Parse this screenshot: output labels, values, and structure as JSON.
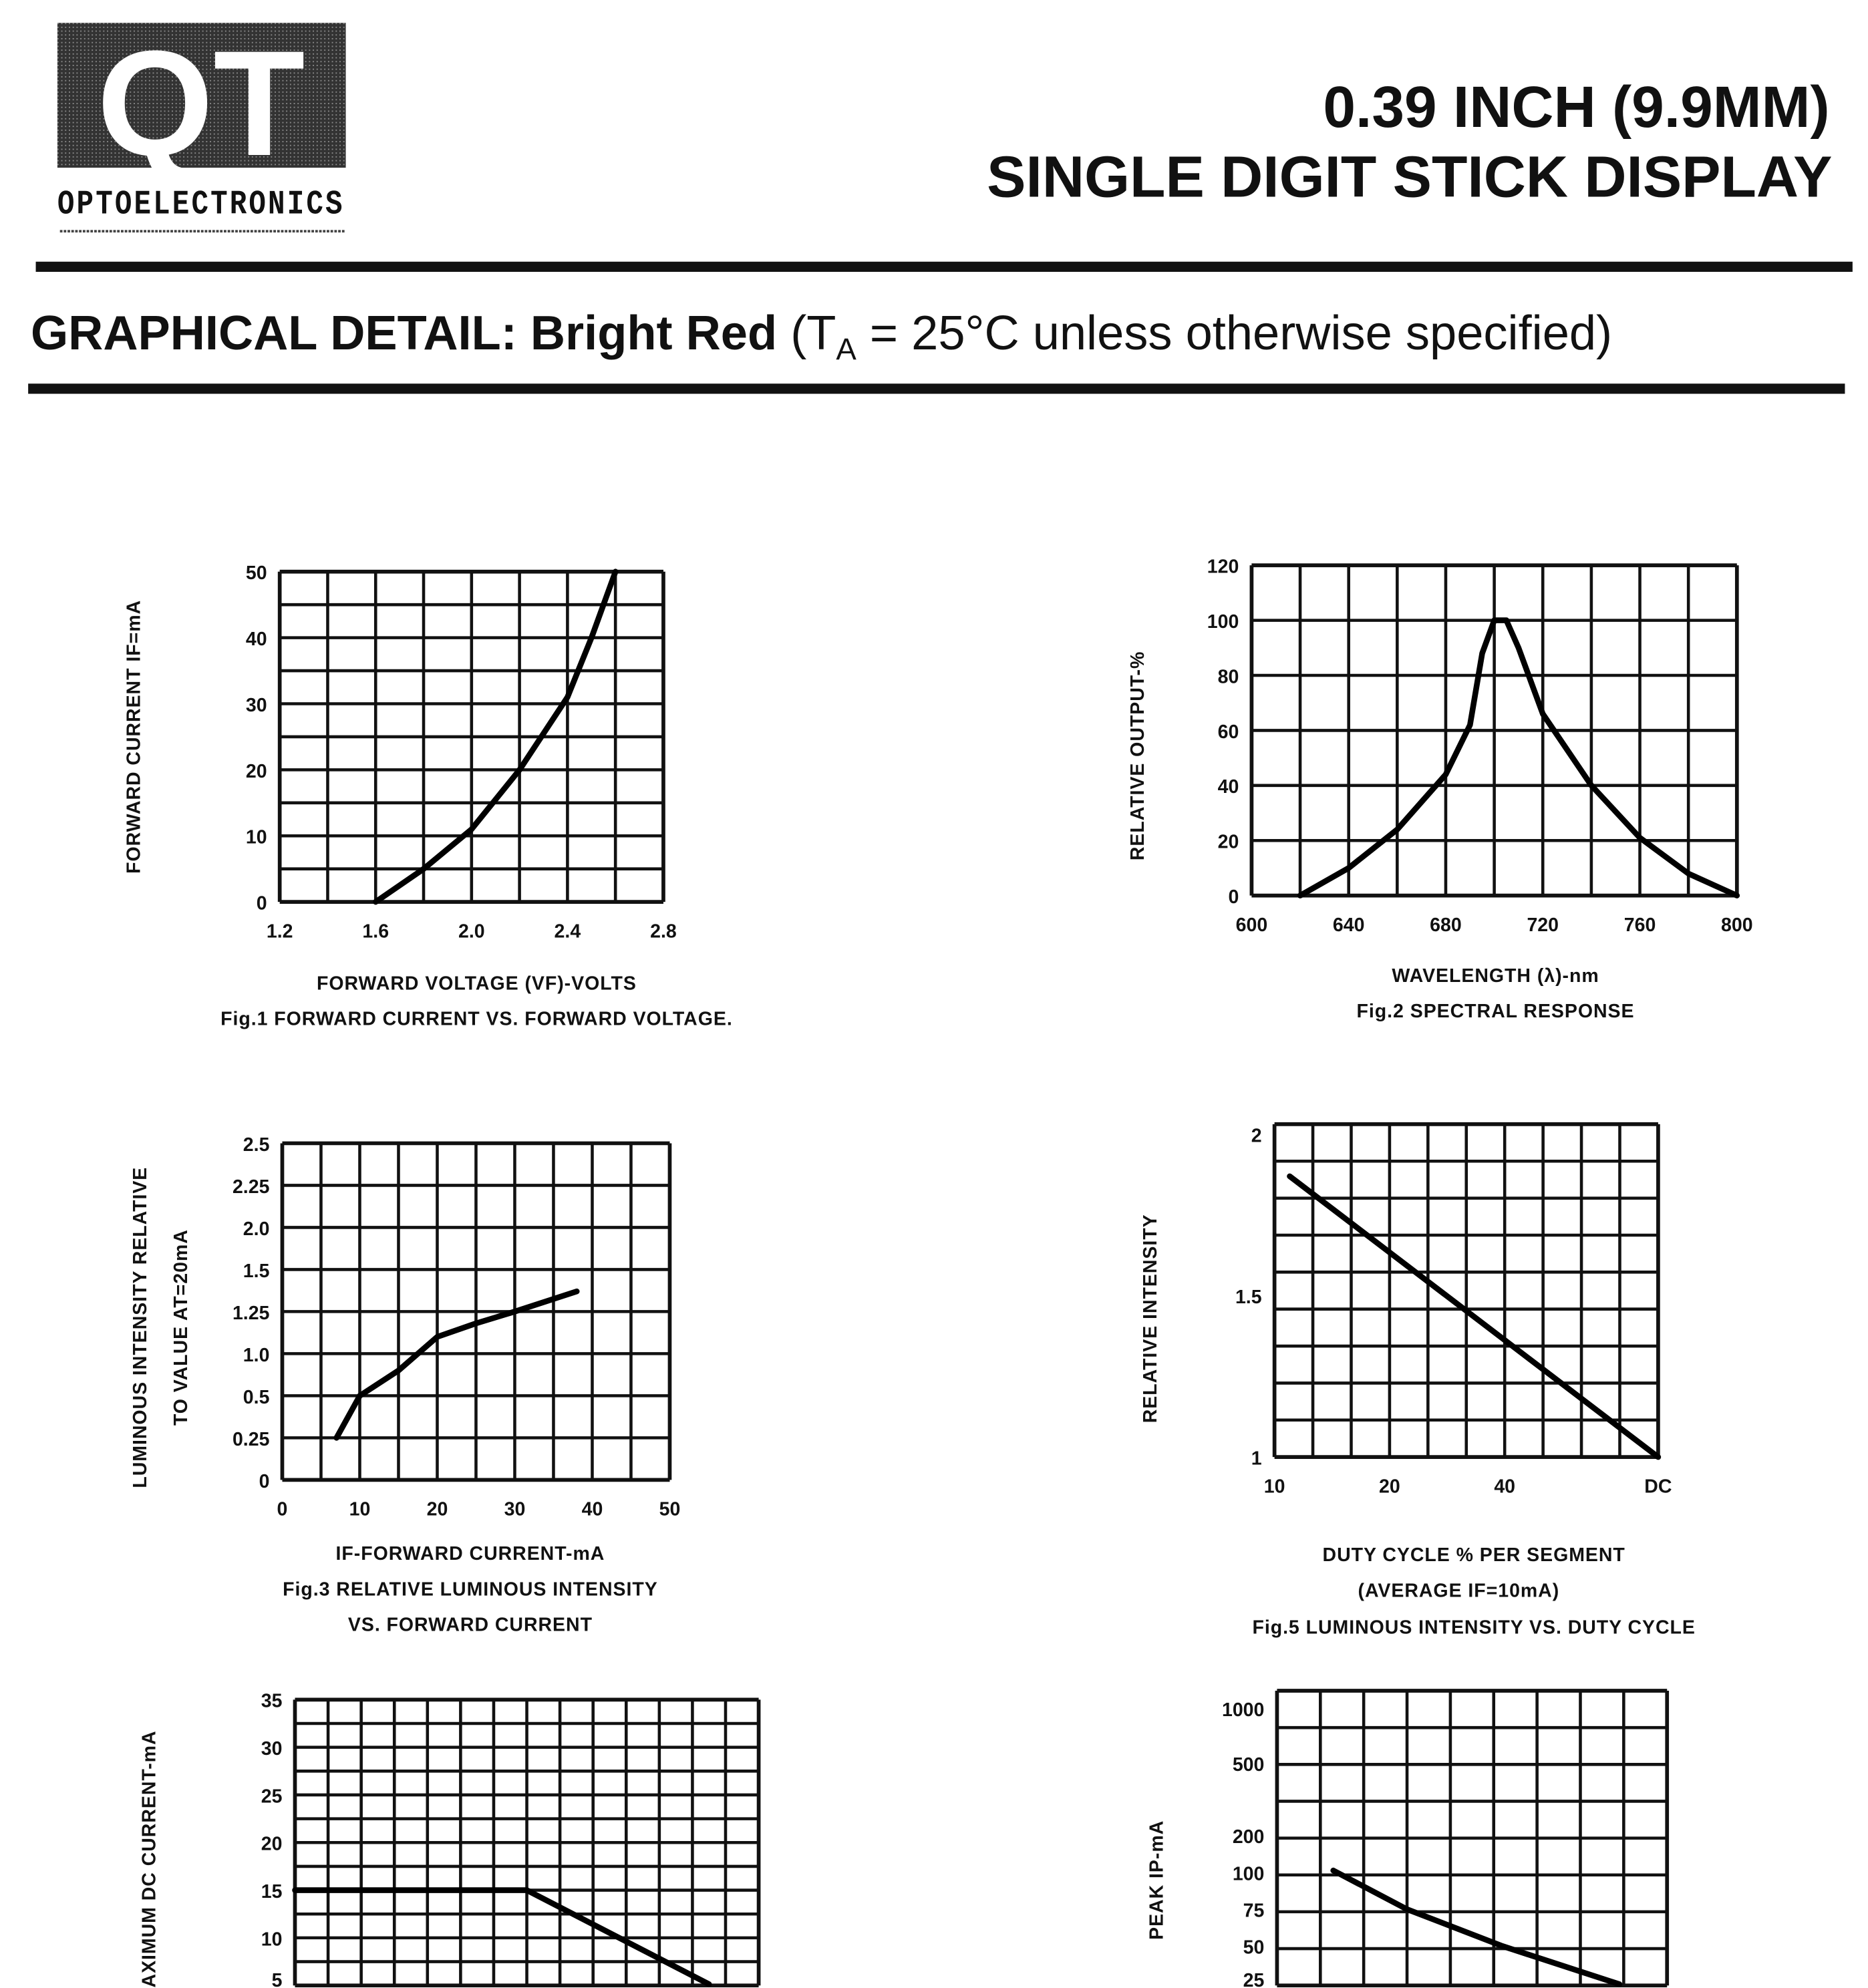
{
  "header": {
    "logo_text": "QT",
    "logo_subtext": "OPTOELECTRONICS",
    "title_line1": "0.39 INCH (9.9MM)",
    "title_line2": "SINGLE  DIGIT STICK DISPLAY"
  },
  "section": {
    "heading_bold": "GRAPHICAL DETAIL: Bright Red",
    "heading_open": " (T",
    "heading_sub": "A",
    "heading_rest": " = 25°C unless otherwise specified)"
  },
  "chart_data": [
    {
      "id": "fig1",
      "type": "line",
      "ylabel": "FORWARD CURRENT IF=mA",
      "xlabel": "FORWARD VOLTAGE (VF)-VOLTS",
      "caption": [
        "Fig.1 FORWARD CURRENT VS. FORWARD VOLTAGE."
      ],
      "xlim": [
        1.2,
        2.8
      ],
      "ylim": [
        0,
        50
      ],
      "grid": true,
      "x_ticks": [
        "1.2",
        "1.6",
        "2.0",
        "2.4",
        "2.8"
      ],
      "y_ticks": [
        "0",
        "10",
        "20",
        "30",
        "40",
        "50"
      ],
      "points": [
        [
          1.6,
          0
        ],
        [
          1.8,
          5
        ],
        [
          2.0,
          11
        ],
        [
          2.2,
          20
        ],
        [
          2.4,
          31
        ],
        [
          2.5,
          40
        ],
        [
          2.6,
          50
        ]
      ]
    },
    {
      "id": "fig2",
      "type": "line",
      "ylabel": "RELATIVE OUTPUT-%",
      "xlabel": "WAVELENGTH (λ)-nm",
      "caption": [
        "Fig.2 SPECTRAL RESPONSE"
      ],
      "xlim": [
        600,
        800
      ],
      "ylim": [
        0,
        120
      ],
      "grid": true,
      "x_ticks": [
        "600",
        "640",
        "680",
        "720",
        "760",
        "800"
      ],
      "y_ticks": [
        "0",
        "20",
        "40",
        "60",
        "80",
        "100",
        "120"
      ],
      "points": [
        [
          620,
          0
        ],
        [
          640,
          10
        ],
        [
          660,
          24
        ],
        [
          680,
          44
        ],
        [
          690,
          62
        ],
        [
          695,
          88
        ],
        [
          700,
          100
        ],
        [
          705,
          100
        ],
        [
          710,
          90
        ],
        [
          720,
          66
        ],
        [
          740,
          40
        ],
        [
          760,
          21
        ],
        [
          780,
          8
        ],
        [
          800,
          0
        ]
      ]
    },
    {
      "id": "fig3",
      "type": "line",
      "ylabel": [
        "LUMINOUS INTENSITY RELATIVE",
        "TO VALUE AT=20mA"
      ],
      "xlabel": "IF-FORWARD CURRENT-mA",
      "caption": [
        "Fig.3 RELATIVE LUMINOUS INTENSITY",
        "VS. FORWARD CURRENT"
      ],
      "xlim": [
        0,
        50
      ],
      "grid": true,
      "x_ticks": [
        "0",
        "10",
        "20",
        "30",
        "40",
        "50"
      ],
      "y_ticks": [
        "0",
        "0.25",
        "0.5",
        "1.0",
        "1.25",
        "1.5",
        "2.0",
        "2.25",
        "2.5"
      ],
      "points": [
        [
          7,
          0.25
        ],
        [
          10,
          0.5
        ],
        [
          15,
          0.8
        ],
        [
          20,
          1.1
        ],
        [
          25,
          1.18
        ],
        [
          30,
          1.25
        ],
        [
          38,
          1.37
        ]
      ]
    },
    {
      "id": "fig5",
      "type": "line",
      "ylabel": "RELATIVE INTENSITY",
      "xlabel": "DUTY CYCLE % PER SEGMENT",
      "xlabel2": "(AVERAGE IF=10mA)",
      "caption": [
        "Fig.5 LUMINOUS INTENSITY VS. DUTY CYCLE"
      ],
      "ylim": [
        1,
        2
      ],
      "grid": true,
      "x_ticks": [
        "10",
        "20",
        "40",
        "DC"
      ],
      "y_ticks": [
        "1",
        "1.5",
        "2"
      ],
      "points": [
        [
          "10",
          1.87
        ],
        [
          "DC",
          1.0
        ]
      ]
    },
    {
      "id": "fig4",
      "type": "line",
      "ylabel": "MAXIMUM DC CURRENT-mA",
      "grid": true,
      "y_ticks": [
        "5",
        "10",
        "15",
        "20",
        "25",
        "30",
        "35"
      ],
      "values": [
        15,
        15,
        5
      ]
    },
    {
      "id": "fig6",
      "type": "line",
      "ylabel": "PEAK IP-mA",
      "grid": true,
      "y_ticks": [
        "25",
        "50",
        "75",
        "100",
        "200",
        "500",
        "1000"
      ],
      "values": [
        105,
        75,
        50,
        25
      ]
    }
  ]
}
